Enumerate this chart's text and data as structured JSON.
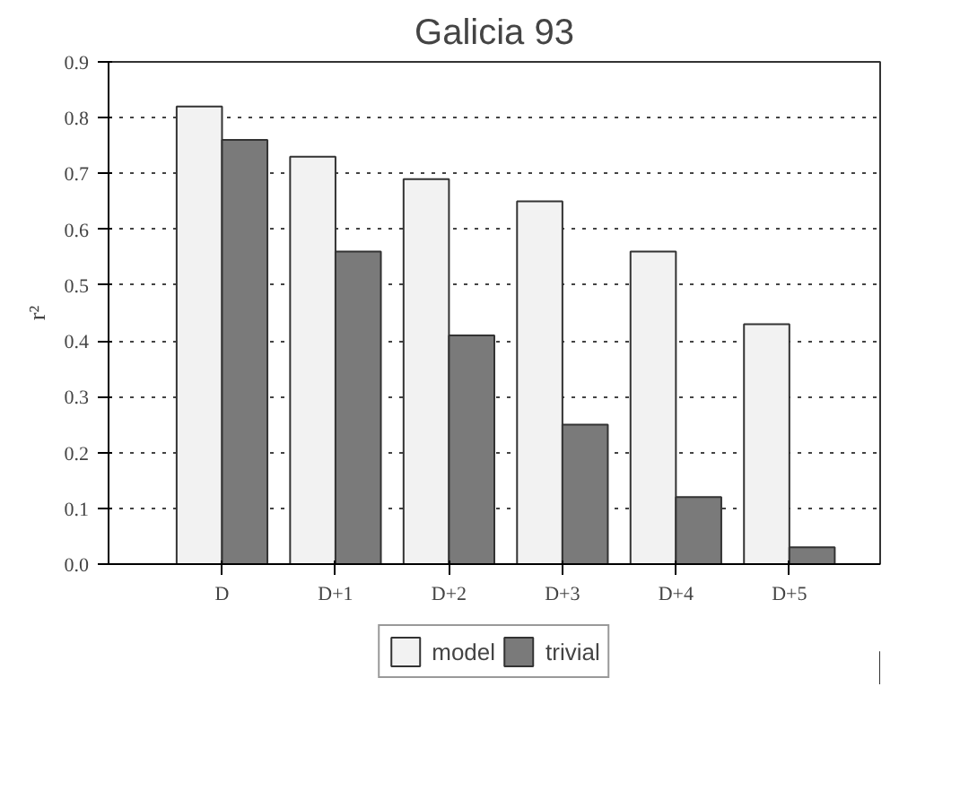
{
  "chart_data": {
    "type": "bar",
    "title": "Galicia 93",
    "ylabel": "r²",
    "categories": [
      "D",
      "D+1",
      "D+2",
      "D+3",
      "D+4",
      "D+5"
    ],
    "series": [
      {
        "name": "model",
        "color": "#f2f2f2",
        "values": [
          0.82,
          0.73,
          0.69,
          0.65,
          0.56,
          0.43
        ]
      },
      {
        "name": "trivial",
        "color": "#7a7a7a",
        "values": [
          0.76,
          0.56,
          0.41,
          0.25,
          0.12,
          0.03
        ]
      }
    ],
    "ylim": [
      0,
      0.9
    ],
    "yticks": [
      {
        "value": 0,
        "label": "0.0"
      },
      0.1,
      0.2,
      0.3,
      0.4,
      0.5,
      0.6,
      0.7,
      0.8,
      0.9
    ],
    "grid": "y",
    "legend": "bottom"
  }
}
